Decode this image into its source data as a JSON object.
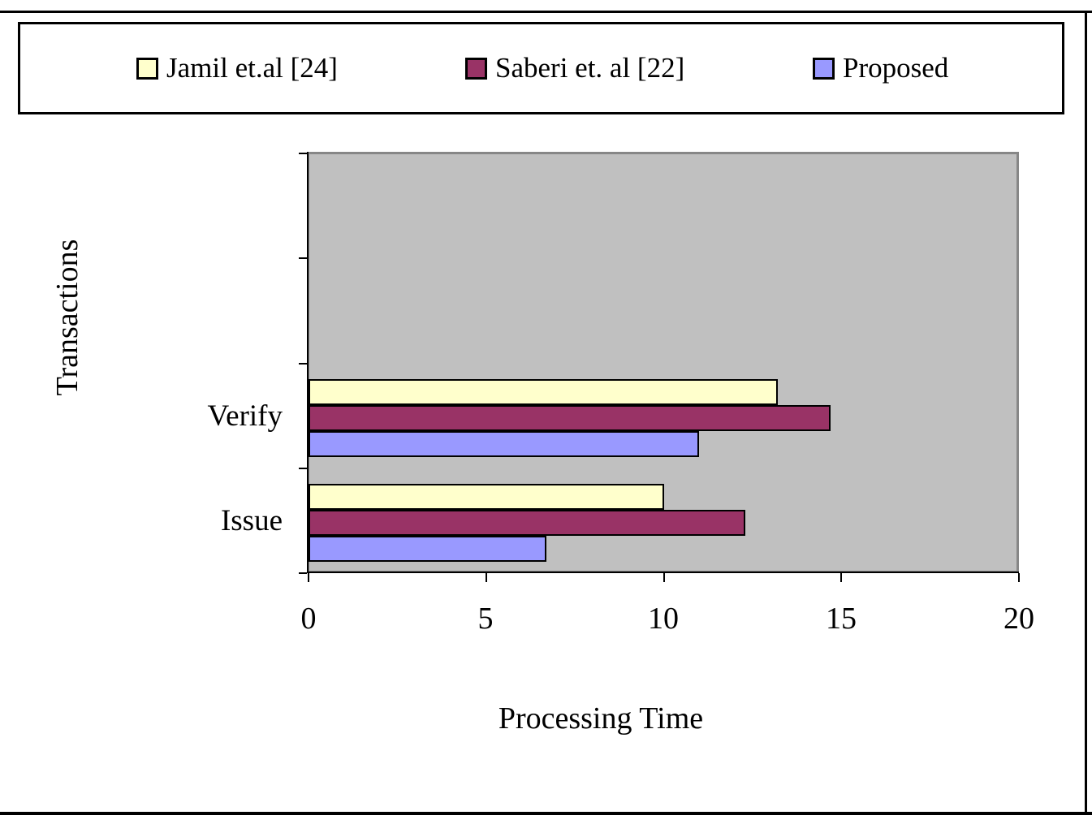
{
  "page": {
    "background_color": "#ffffff",
    "frame_color": "#000000"
  },
  "legend": {
    "position": "top",
    "border_color": "#000000"
  },
  "chart_data": {
    "type": "bar",
    "orientation": "horizontal",
    "title": "",
    "xlabel": "Processing Time",
    "ylabel": "Transactions",
    "categories": [
      "Verify",
      "Issue"
    ],
    "series": [
      {
        "name": "Jamil et.al [24]",
        "color": "#ffffcc",
        "values": [
          13.2,
          10.0
        ]
      },
      {
        "name": "Saberi et. al [22]",
        "color": "#993366",
        "values": [
          14.7,
          12.3
        ]
      },
      {
        "name": "Proposed",
        "color": "#9999ff",
        "values": [
          11.0,
          6.7
        ]
      }
    ],
    "xlim": [
      0,
      20
    ],
    "x_ticks": [
      0,
      5,
      10,
      15,
      20
    ],
    "plot_background": "#c0c0c0",
    "plot_border_color": "#878787",
    "bar_border_color": "#000000",
    "grid": false,
    "legend_position": "top"
  }
}
